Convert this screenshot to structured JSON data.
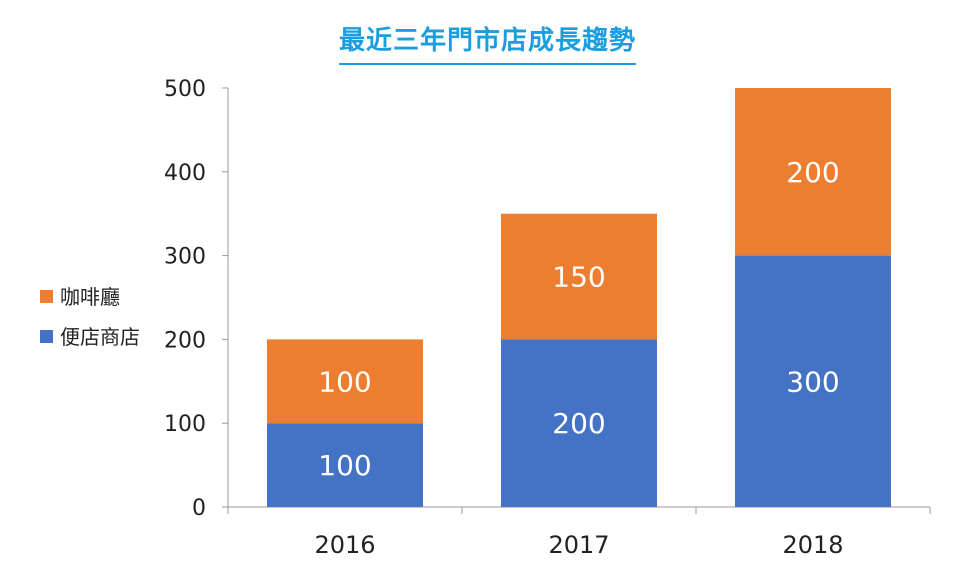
{
  "chart_data": {
    "type": "bar",
    "stacked": true,
    "title": "最近三年門市店成長趨勢",
    "categories": [
      "2016",
      "2017",
      "2018"
    ],
    "series": [
      {
        "name": "便店商店",
        "values": [
          100,
          200,
          300
        ],
        "color": "#4472c4"
      },
      {
        "name": "咖啡廳",
        "values": [
          100,
          150,
          200
        ],
        "color": "#ed7d31"
      }
    ],
    "ylim": [
      0,
      500
    ],
    "yticks": [
      0,
      100,
      200,
      300,
      400,
      500
    ],
    "xlabel": "",
    "ylabel": "",
    "grid": false,
    "legend": {
      "position": "left",
      "order": [
        "咖啡廳",
        "便店商店"
      ]
    },
    "data_labels": true
  }
}
